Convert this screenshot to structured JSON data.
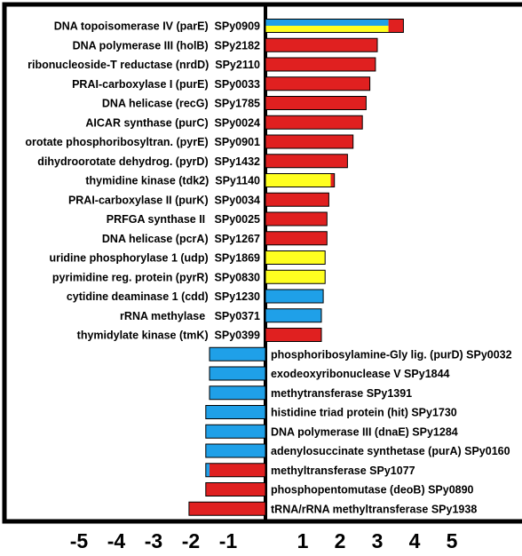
{
  "chart_data": {
    "type": "bar",
    "orientation": "horizontal",
    "title": "",
    "xlabel": "",
    "ylabel": "",
    "xlim": [
      -6,
      6.5
    ],
    "x_ticks": [
      "-5",
      "-4",
      "-3",
      "-2",
      "-1",
      "1",
      "2",
      "3",
      "4",
      "5"
    ],
    "x_tick_values": [
      -5,
      -4,
      -3,
      -2,
      -1,
      1,
      2,
      3,
      4,
      5
    ],
    "colors": {
      "red": "#e02020",
      "blue": "#1fa0e8",
      "yellow": "#ffff20",
      "outline": "#000000"
    },
    "bars": [
      {
        "label": "DNA topoisomerase IV (parE)  SPy0909",
        "value": 3.7,
        "segments": [
          {
            "from": 0,
            "to": 3.3,
            "color": "blue",
            "half": "top"
          },
          {
            "from": 0,
            "to": 3.3,
            "color": "yellow",
            "half": "bottom"
          },
          {
            "from": 3.3,
            "to": 3.7,
            "color": "red"
          }
        ]
      },
      {
        "label": "DNA polymerase III (holB)  SPy2182",
        "value": 3.0,
        "segments": [
          {
            "from": 0,
            "to": 3.0,
            "color": "red"
          }
        ]
      },
      {
        "label": "ribonucleoside-T reductase (nrdD)  SPy2110",
        "value": 2.95,
        "segments": [
          {
            "from": 0,
            "to": 2.95,
            "color": "red"
          }
        ]
      },
      {
        "label": "PRAI-carboxylase I (purE)  SPy0033",
        "value": 2.8,
        "segments": [
          {
            "from": 0,
            "to": 2.8,
            "color": "red"
          }
        ]
      },
      {
        "label": "DNA helicase (recG)  SPy1785",
        "value": 2.7,
        "segments": [
          {
            "from": 0,
            "to": 2.7,
            "color": "red"
          }
        ]
      },
      {
        "label": "AICAR synthase (purC)  SPy0024",
        "value": 2.6,
        "segments": [
          {
            "from": 0,
            "to": 2.6,
            "color": "red"
          }
        ]
      },
      {
        "label": "orotate phosphoribosyltran. (pyrE)  SPy0901",
        "value": 2.35,
        "segments": [
          {
            "from": 0,
            "to": 2.35,
            "color": "red"
          }
        ]
      },
      {
        "label": "dihydroorotate dehydrog. (pyrD)  SPy1432",
        "value": 2.2,
        "segments": [
          {
            "from": 0,
            "to": 2.2,
            "color": "red"
          }
        ]
      },
      {
        "label": "thymidine kinase (tdk2)  SPy1140",
        "value": 1.85,
        "segments": [
          {
            "from": 0,
            "to": 1.75,
            "color": "yellow"
          },
          {
            "from": 1.75,
            "to": 1.85,
            "color": "red"
          }
        ]
      },
      {
        "label": "PRAI-carboxylase II (purK)  SPy0034",
        "value": 1.7,
        "segments": [
          {
            "from": 0,
            "to": 1.7,
            "color": "red"
          }
        ]
      },
      {
        "label": "PRFGA synthase II   SPy0025",
        "value": 1.65,
        "segments": [
          {
            "from": 0,
            "to": 1.65,
            "color": "red"
          }
        ]
      },
      {
        "label": "DNA helicase (pcrA)  SPy1267",
        "value": 1.65,
        "segments": [
          {
            "from": 0,
            "to": 1.65,
            "color": "red"
          }
        ]
      },
      {
        "label": "uridine phosphorylase 1 (udp)  SPy1869",
        "value": 1.6,
        "segments": [
          {
            "from": 0,
            "to": 1.6,
            "color": "yellow"
          }
        ]
      },
      {
        "label": "pyrimidine reg. protein (pyrR)  SPy0830",
        "value": 1.6,
        "segments": [
          {
            "from": 0,
            "to": 1.6,
            "color": "yellow"
          }
        ]
      },
      {
        "label": "cytidine deaminase 1 (cdd)  SPy1230",
        "value": 1.55,
        "segments": [
          {
            "from": 0,
            "to": 1.55,
            "color": "blue"
          }
        ]
      },
      {
        "label": "rRNA methylase   SPy0371",
        "value": 1.5,
        "segments": [
          {
            "from": 0,
            "to": 1.5,
            "color": "blue"
          }
        ]
      },
      {
        "label": "thymidylate kinase (tmK)  SPy0399",
        "value": 1.5,
        "segments": [
          {
            "from": 0,
            "to": 1.5,
            "color": "red"
          }
        ]
      },
      {
        "label": "phosphoribosylamine-Gly lig. (purD) SPy0032",
        "value": -1.5,
        "segments": [
          {
            "from": -1.5,
            "to": 0,
            "color": "blue"
          }
        ]
      },
      {
        "label": "exodeoxyribonuclease V SPy1844",
        "value": -1.5,
        "segments": [
          {
            "from": -1.5,
            "to": 0,
            "color": "blue"
          }
        ]
      },
      {
        "label": "methytransferase SPy1391",
        "value": -1.5,
        "segments": [
          {
            "from": -1.5,
            "to": 0,
            "color": "blue"
          }
        ]
      },
      {
        "label": "histidine triad protein (hit) SPy1730",
        "value": -1.6,
        "segments": [
          {
            "from": -1.6,
            "to": 0,
            "color": "blue"
          }
        ]
      },
      {
        "label": "DNA polymerase III (dnaE) SPy1284",
        "value": -1.6,
        "segments": [
          {
            "from": -1.6,
            "to": 0,
            "color": "blue"
          }
        ]
      },
      {
        "label": "adenylosuccinate synthetase (purA) SPy0160",
        "value": -1.6,
        "segments": [
          {
            "from": -1.6,
            "to": 0,
            "color": "blue"
          }
        ]
      },
      {
        "label": "methyltransferase SPy1077",
        "value": -1.6,
        "segments": [
          {
            "from": -1.6,
            "to": -1.5,
            "color": "blue"
          },
          {
            "from": -1.5,
            "to": 0,
            "color": "red"
          }
        ]
      },
      {
        "label": "phosphopentomutase (deoB) SPy0890",
        "value": -1.6,
        "segments": [
          {
            "from": -1.6,
            "to": 0,
            "color": "red"
          }
        ]
      },
      {
        "label": "tRNA/rRNA methyltransferase SPy1938",
        "value": -2.05,
        "segments": [
          {
            "from": -2.05,
            "to": 0,
            "color": "red"
          }
        ]
      }
    ]
  }
}
